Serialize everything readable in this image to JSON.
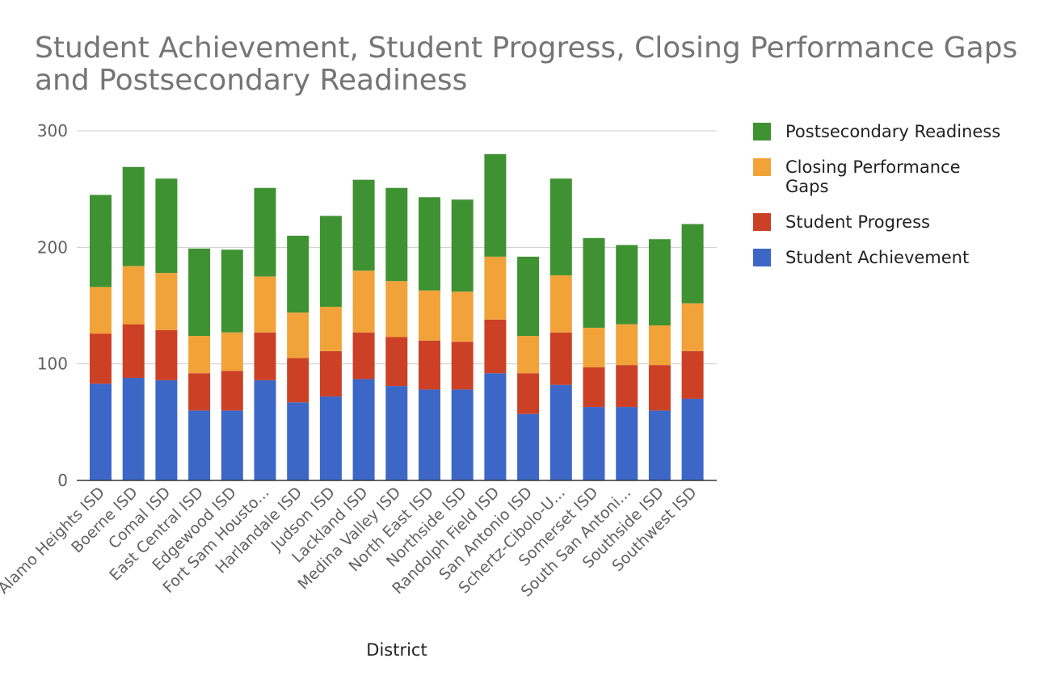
{
  "chart_data": {
    "type": "bar",
    "stacked": true,
    "title": "Student Achievement, Student Progress, Closing Performance Gaps and Postsecondary Readiness",
    "xlabel": "District",
    "ylabel": "",
    "ylim": [
      0,
      300
    ],
    "yticks": [
      0,
      100,
      200,
      300
    ],
    "grid": true,
    "legend_position": "right",
    "categories": [
      "Alamo Heights ISD",
      "Boerne ISD",
      "Comal ISD",
      "East Central ISD",
      "Edgewood ISD",
      "Fort Sam Housto...",
      "Harlandale ISD",
      "Judson ISD",
      "Lackland ISD",
      "Medina Valley ISD",
      "North East ISD",
      "Northside ISD",
      "Randolph Field ISD",
      "San Antonio ISD",
      "Schertz-Cibolo-U...",
      "Somerset ISD",
      "South San Antoni...",
      "Southside ISD",
      "Southwest ISD"
    ],
    "series": [
      {
        "name": "Student Achievement",
        "color": "#3d67c7",
        "values": [
          83,
          88,
          86,
          60,
          60,
          86,
          67,
          72,
          87,
          81,
          78,
          78,
          92,
          57,
          82,
          63,
          63,
          60,
          70
        ]
      },
      {
        "name": "Student Progress",
        "color": "#cc4125",
        "values": [
          43,
          46,
          43,
          32,
          34,
          41,
          38,
          39,
          40,
          42,
          42,
          41,
          46,
          35,
          45,
          34,
          36,
          39,
          41
        ]
      },
      {
        "name": "Closing Performance Gaps",
        "color": "#f1a33a",
        "values": [
          40,
          50,
          49,
          32,
          33,
          48,
          39,
          38,
          53,
          48,
          43,
          43,
          54,
          32,
          49,
          34,
          35,
          34,
          41
        ]
      },
      {
        "name": "Postsecondary Readiness",
        "color": "#3f9232",
        "values": [
          79,
          85,
          81,
          75,
          71,
          76,
          66,
          78,
          78,
          80,
          80,
          79,
          88,
          68,
          83,
          77,
          68,
          74,
          68
        ]
      }
    ],
    "legend_order": [
      "Postsecondary Readiness",
      "Closing Performance Gaps",
      "Student Progress",
      "Student Achievement"
    ],
    "legend_display": [
      [
        "Postsecondary Readiness"
      ],
      [
        "Closing Performance",
        "Gaps"
      ],
      [
        "Student Progress"
      ],
      [
        "Student Achievement"
      ]
    ],
    "colors": {
      "grid": "#cccccc",
      "axis": "#333333",
      "text": "#616161"
    }
  }
}
